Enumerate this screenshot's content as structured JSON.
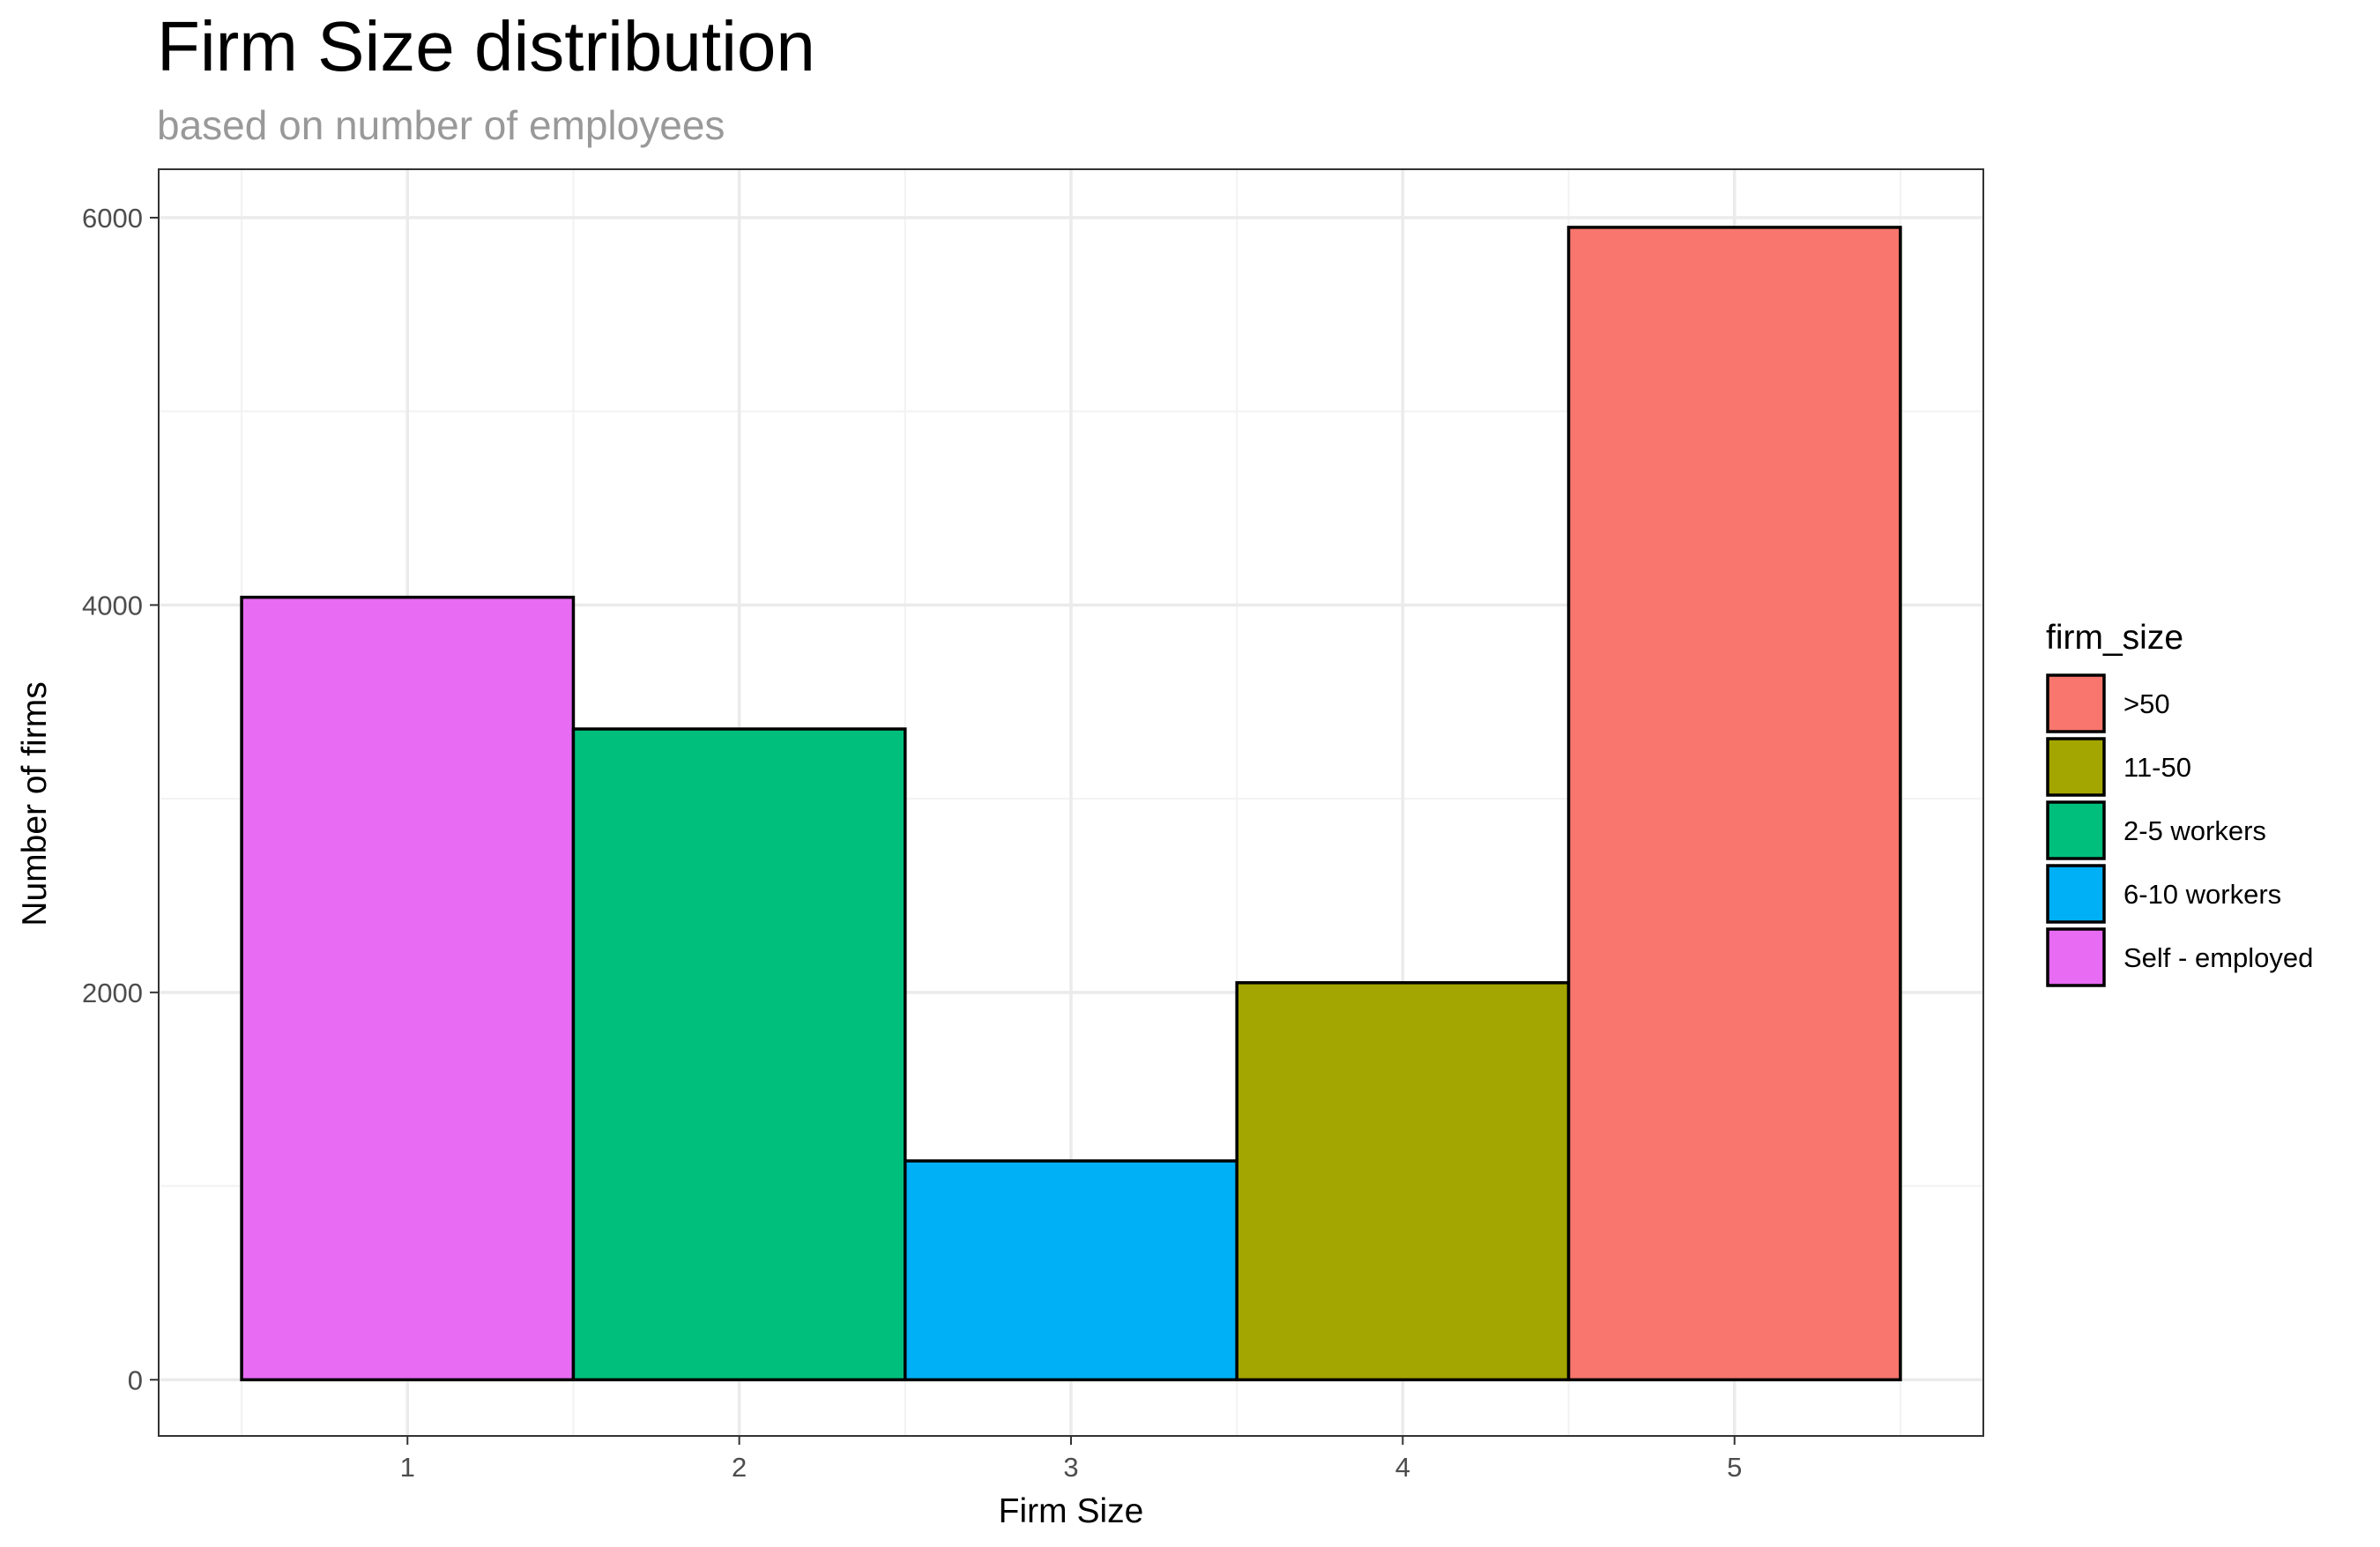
{
  "chart_data": {
    "type": "bar",
    "title": "Firm Size distribution",
    "subtitle": "based on number of employees",
    "xlabel": "Firm Size",
    "ylabel": "Number of firms",
    "categories": [
      1,
      2,
      3,
      4,
      5
    ],
    "values": [
      4040,
      3360,
      1130,
      2050,
      5950
    ],
    "fill_group": [
      "Self - employed",
      "2-5 workers",
      "6-10 workers",
      "11-50",
      ">50"
    ],
    "xlim": [
      0.25,
      5.75
    ],
    "ylim": [
      -290,
      6250
    ],
    "x_ticks": [
      1,
      2,
      3,
      4,
      5
    ],
    "y_ticks": [
      0,
      2000,
      4000,
      6000
    ],
    "grid": true,
    "legend": {
      "title": "firm_size",
      "placement": "right",
      "entries": [
        {
          "label": ">50",
          "color": "#F8766D"
        },
        {
          "label": "11-50",
          "color": "#A3A500"
        },
        {
          "label": "2-5 workers",
          "color": "#00BF7D"
        },
        {
          "label": "6-10 workers",
          "color": "#00B0F6"
        },
        {
          "label": "Self - employed",
          "color": "#E76BF3"
        }
      ]
    }
  }
}
